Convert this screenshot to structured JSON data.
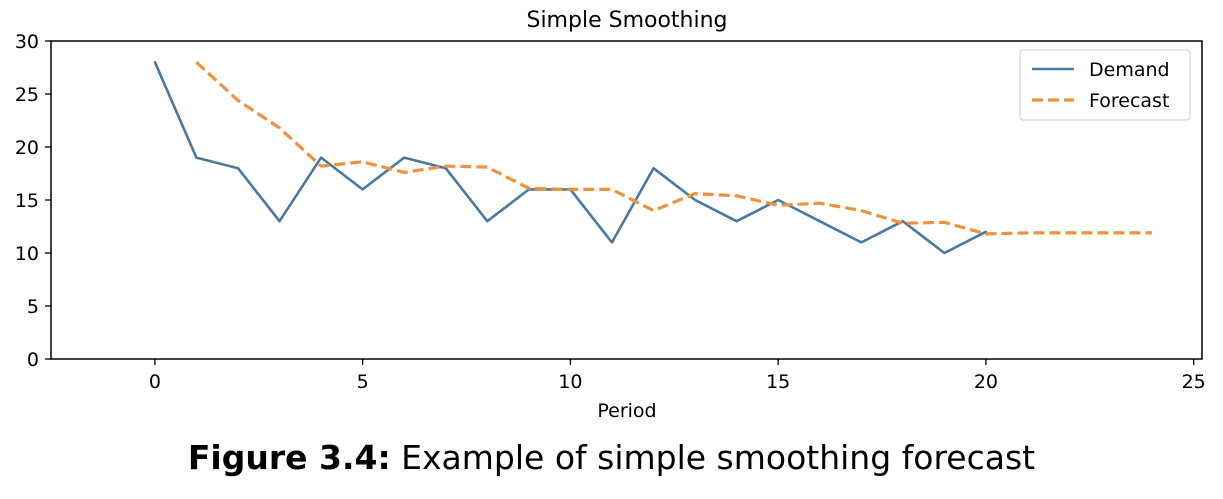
{
  "chart_data": {
    "type": "line",
    "title": "Simple Smoothing",
    "xlabel": "Period",
    "ylabel": "",
    "xlim": [
      -2.5,
      25.2
    ],
    "ylim": [
      0,
      30
    ],
    "x_ticks": [
      "0",
      "5",
      "10",
      "15",
      "20",
      "25"
    ],
    "y_ticks": [
      "0",
      "5",
      "10",
      "15",
      "20",
      "25",
      "30"
    ],
    "grid": false,
    "legend_position": "top-right",
    "series": [
      {
        "name": "Demand",
        "style": "solid",
        "color": "#4a78a0",
        "x": [
          0,
          1,
          2,
          3,
          4,
          5,
          6,
          7,
          8,
          9,
          10,
          11,
          12,
          13,
          14,
          15,
          16,
          17,
          18,
          19,
          20
        ],
        "values": [
          28,
          19,
          18,
          13,
          19,
          16,
          19,
          18,
          13,
          16,
          16,
          11,
          18,
          15,
          13,
          15,
          13,
          11,
          13,
          10,
          12
        ]
      },
      {
        "name": "Forecast",
        "style": "dashed",
        "color": "#f0913e",
        "x": [
          1,
          2,
          3,
          4,
          5,
          6,
          7,
          8,
          9,
          10,
          11,
          12,
          13,
          14,
          15,
          16,
          17,
          18,
          19,
          20,
          21,
          22,
          23,
          24
        ],
        "values": [
          28,
          24.4,
          21.8,
          18.2,
          18.6,
          17.6,
          18.2,
          18.1,
          16.1,
          16.0,
          16.0,
          14.0,
          15.6,
          15.4,
          14.5,
          14.7,
          14.0,
          12.8,
          12.9,
          11.8,
          11.9,
          11.9,
          11.9,
          11.9
        ]
      }
    ]
  },
  "caption": {
    "label": "Figure 3.4:",
    "text": "Example of simple smoothing forecast"
  }
}
